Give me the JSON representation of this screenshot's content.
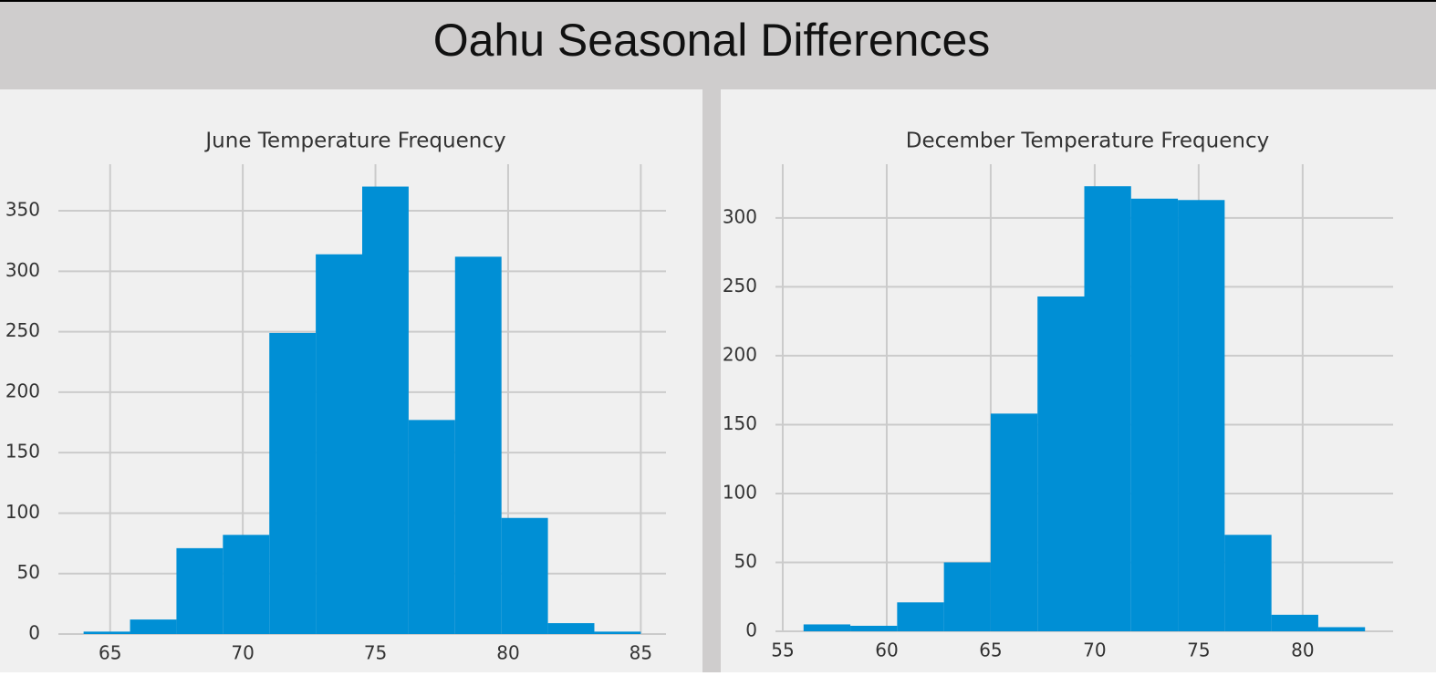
{
  "header": {
    "title": "Oahu Seasonal Differences"
  },
  "chart_data": [
    {
      "type": "histogram",
      "title": "June Temperature Frequency",
      "color": "#008fd5",
      "grid": true,
      "bins": [
        64,
        65.75,
        67.5,
        69.25,
        71,
        72.75,
        74.5,
        76.25,
        78,
        79.75,
        81.5,
        83.25,
        85
      ],
      "values": [
        2,
        12,
        71,
        82,
        249,
        314,
        370,
        177,
        312,
        96,
        9,
        2
      ],
      "xlim": [
        63.05,
        85.95
      ],
      "xticks": [
        65,
        70,
        75,
        80,
        85
      ],
      "ylim": [
        0,
        388.5
      ],
      "yticks": [
        0,
        50,
        100,
        150,
        200,
        250,
        300,
        350
      ]
    },
    {
      "type": "histogram",
      "title": "December Temperature Frequency",
      "color": "#008fd5",
      "grid": true,
      "bins": [
        56,
        58.25,
        60.5,
        62.75,
        65,
        67.25,
        69.5,
        71.75,
        74,
        76.25,
        78.5,
        80.75,
        83
      ],
      "values": [
        5,
        4,
        21,
        50,
        158,
        243,
        323,
        314,
        313,
        70,
        12,
        3
      ],
      "xlim": [
        54.65,
        84.35
      ],
      "xticks": [
        55,
        60,
        65,
        70,
        75,
        80
      ],
      "ylim": [
        0,
        339
      ],
      "yticks": [
        0,
        50,
        100,
        150,
        200,
        250,
        300
      ]
    }
  ]
}
